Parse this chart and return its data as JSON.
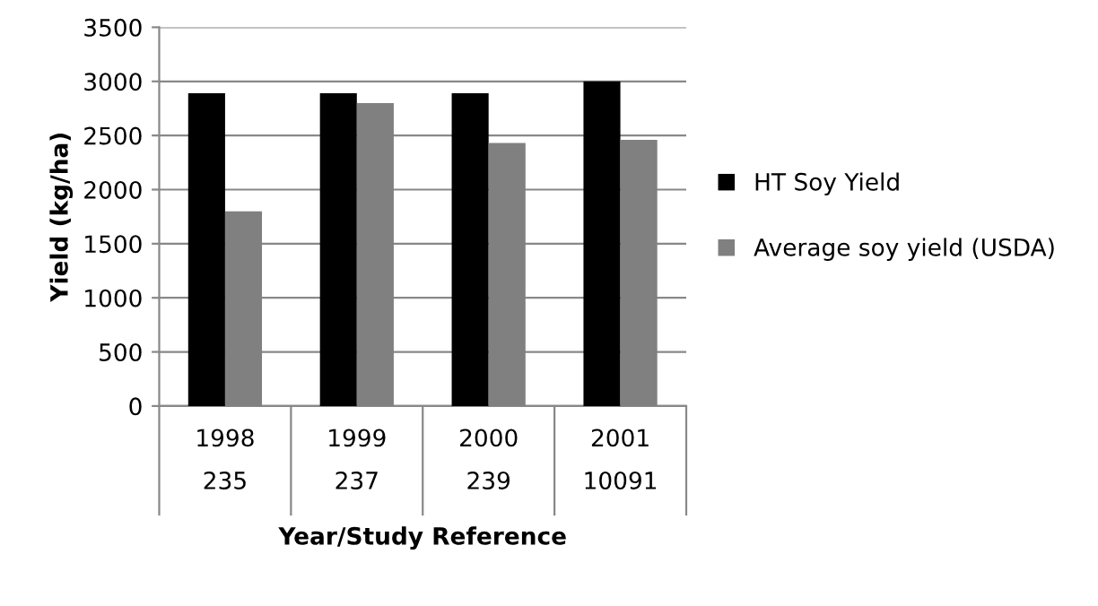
{
  "chart_data": {
    "type": "bar",
    "xlabel": "Year/Study Reference",
    "ylabel": "Yield (kg/ha)",
    "categories": [
      "1998\n235",
      "1999\n237",
      "2000\n239",
      "2001\n10091"
    ],
    "series": [
      {
        "name": "HT Soy Yield",
        "color": "#000000",
        "values": [
          2890,
          2890,
          2890,
          3000
        ]
      },
      {
        "name": "Average soy yield (USDA)",
        "color": "#808080",
        "values": [
          1800,
          2800,
          2430,
          2460
        ]
      }
    ],
    "ylim": [
      0,
      3500
    ],
    "yticks": [
      0,
      500,
      1000,
      1500,
      2000,
      2500,
      3000,
      3500
    ],
    "grid": "y",
    "legend": "right"
  }
}
